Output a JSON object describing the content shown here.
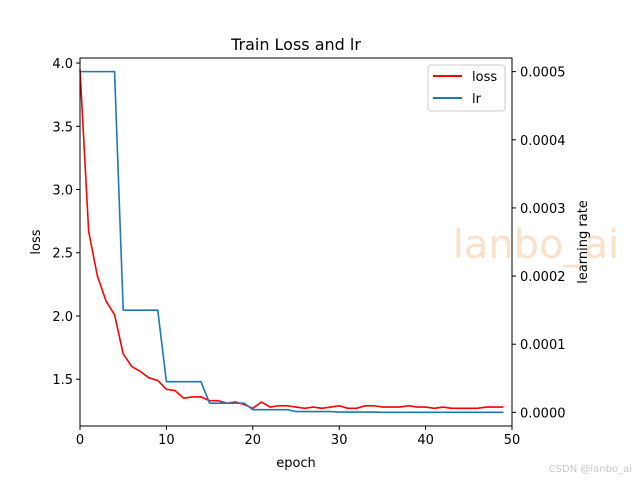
{
  "chart_data": {
    "type": "line",
    "title": "Train Loss and lr",
    "xlabel": "epoch",
    "ylabel": "loss",
    "y2label": "learning rate",
    "xlim": [
      0,
      50
    ],
    "ylim": [
      1.13,
      4.04
    ],
    "y2lim": [
      -2e-05,
      0.00052
    ],
    "xticks": [
      "0",
      "10",
      "20",
      "30",
      "40",
      "50"
    ],
    "yticks": [
      "1.5",
      "2.0",
      "2.5",
      "3.0",
      "3.5",
      "4.0"
    ],
    "y2ticks": [
      "0.0000",
      "0.0001",
      "0.0002",
      "0.0003",
      "0.0004",
      "0.0005"
    ],
    "legend_position": "top-right",
    "series": [
      {
        "name": "loss",
        "axis": "left",
        "color": "#ff0000",
        "step": false,
        "x": [
          0,
          1,
          2,
          3,
          4,
          5,
          6,
          7,
          8,
          9,
          10,
          11,
          12,
          13,
          14,
          15,
          16,
          17,
          18,
          19,
          20,
          21,
          22,
          23,
          24,
          25,
          26,
          27,
          28,
          29,
          30,
          31,
          32,
          33,
          34,
          35,
          36,
          37,
          38,
          39,
          40,
          41,
          42,
          43,
          44,
          45,
          46,
          47,
          48,
          49
        ],
        "values": [
          3.95,
          2.67,
          2.32,
          2.12,
          2.01,
          1.7,
          1.6,
          1.56,
          1.51,
          1.49,
          1.42,
          1.41,
          1.35,
          1.36,
          1.36,
          1.33,
          1.33,
          1.31,
          1.32,
          1.3,
          1.27,
          1.32,
          1.28,
          1.29,
          1.29,
          1.28,
          1.27,
          1.28,
          1.27,
          1.28,
          1.29,
          1.27,
          1.27,
          1.29,
          1.29,
          1.28,
          1.28,
          1.28,
          1.29,
          1.28,
          1.28,
          1.27,
          1.28,
          1.27,
          1.27,
          1.27,
          1.27,
          1.28,
          1.28,
          1.28
        ]
      },
      {
        "name": "lr",
        "axis": "right",
        "color": "#1f77b4",
        "step": true,
        "x": [
          0,
          4,
          5,
          9,
          10,
          14,
          15,
          19,
          20,
          24,
          25,
          29,
          30,
          34,
          35,
          39,
          40,
          44,
          45,
          49
        ],
        "values": [
          0.0005,
          0.0005,
          0.00015,
          0.00015,
          4.5e-05,
          4.5e-05,
          1.35e-05,
          1.35e-05,
          4e-06,
          4e-06,
          1.2e-06,
          1.2e-06,
          4e-07,
          4e-07,
          1e-07,
          1e-07,
          3e-08,
          3e-08,
          1e-08,
          1e-08
        ]
      }
    ]
  },
  "watermark": "lanbo_ai",
  "credit": "CSDN @lanbo_ai"
}
